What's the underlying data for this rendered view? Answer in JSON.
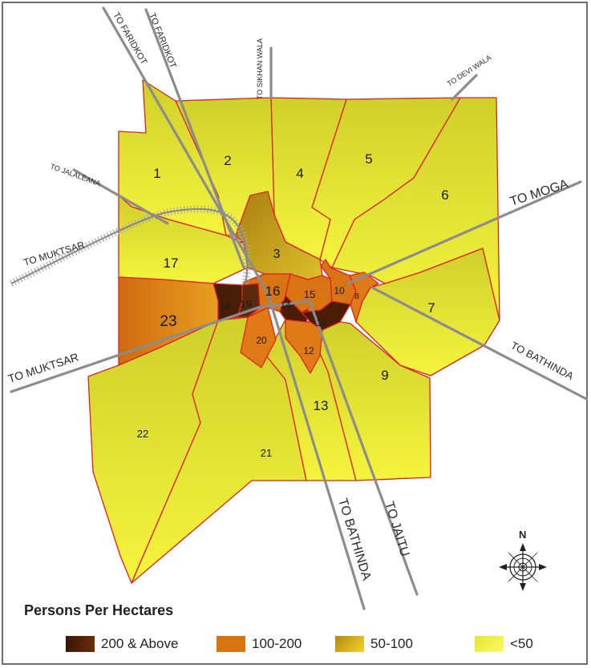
{
  "colors": {
    "class_200": "#4a1e06",
    "class_100": "#d97412",
    "class_50": "#c9a218",
    "class_lt50": "#f1f13a",
    "boundary": "#e02020",
    "road": "#8c8c8c"
  },
  "roads": {
    "to_faridkot_1": "TO FARIDKOT",
    "to_faridkot_2": "TO FARIDKOT",
    "to_sikhan_wala": "TO SIKHAN WALA",
    "to_devi_wala": "TO DEVI WALA",
    "to_jalaleana": "TO JALALEANA",
    "to_moga": "TO MOGA",
    "to_muktsar_upper": "TO MUKTSAR",
    "to_muktsar_lower": "TO MUKTSAR",
    "to_bathinda_east": "TO BATHINDA",
    "to_bathinda_south": "TO BATHINDA",
    "to_jaitu": "TO JAITU"
  },
  "wards": [
    {
      "id": "1",
      "label": "1",
      "class": "lt50"
    },
    {
      "id": "2",
      "label": "2",
      "class": "lt50"
    },
    {
      "id": "3",
      "label": "3",
      "class": "50"
    },
    {
      "id": "4",
      "label": "4",
      "class": "lt50"
    },
    {
      "id": "5",
      "label": "5",
      "class": "lt50"
    },
    {
      "id": "6",
      "label": "6",
      "class": "lt50"
    },
    {
      "id": "7",
      "label": "7",
      "class": "lt50"
    },
    {
      "id": "8",
      "label": "8",
      "class": "100"
    },
    {
      "id": "9",
      "label": "9",
      "class": "lt50"
    },
    {
      "id": "10",
      "label": "10",
      "class": "100"
    },
    {
      "id": "11",
      "label": "11",
      "class": "200"
    },
    {
      "id": "12",
      "label": "12",
      "class": "100"
    },
    {
      "id": "13",
      "label": "13",
      "class": "lt50"
    },
    {
      "id": "14",
      "label": "14",
      "class": "200"
    },
    {
      "id": "15",
      "label": "15",
      "class": "100"
    },
    {
      "id": "16",
      "label": "16",
      "class": "100"
    },
    {
      "id": "17",
      "label": "17",
      "class": "lt50"
    },
    {
      "id": "18",
      "label": "18",
      "class": "200"
    },
    {
      "id": "19",
      "label": "19",
      "class": "200"
    },
    {
      "id": "20",
      "label": "20",
      "class": "100"
    },
    {
      "id": "21",
      "label": "21",
      "class": "lt50"
    },
    {
      "id": "22",
      "label": "22",
      "class": "lt50"
    },
    {
      "id": "23",
      "label": "23",
      "class": "100"
    }
  ],
  "compass": {
    "north_label": "N"
  },
  "legend": {
    "title": "Persons Per Hectares",
    "items": [
      {
        "label": "200 & Above"
      },
      {
        "label": "100-200"
      },
      {
        "label": "50-100"
      },
      {
        "label": "<50"
      }
    ]
  }
}
